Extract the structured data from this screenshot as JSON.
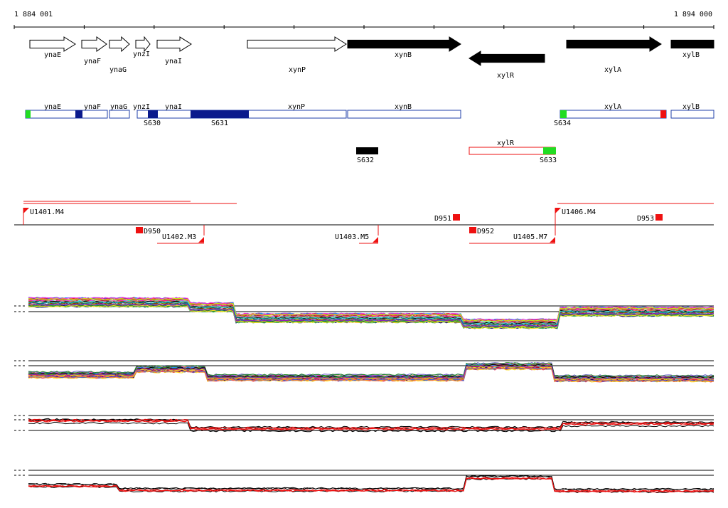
{
  "coordinates": {
    "start_label": "1 884 001",
    "end_label": "1 894 000"
  },
  "genes": [
    {
      "label": "ynaE",
      "strand": "+",
      "style": "outline"
    },
    {
      "label": "ynaF",
      "strand": "+",
      "style": "outline"
    },
    {
      "label": "ynaG",
      "strand": "+",
      "style": "outline"
    },
    {
      "label": "ynzI",
      "strand": "+",
      "style": "outline"
    },
    {
      "label": "ynaI",
      "strand": "+",
      "style": "outline"
    },
    {
      "label": "xynP",
      "strand": "+",
      "style": "outline"
    },
    {
      "label": "xynB",
      "strand": "+",
      "style": "filled"
    },
    {
      "label": "xylR",
      "strand": "-",
      "style": "filled"
    },
    {
      "label": "xylA",
      "strand": "+",
      "style": "filled"
    },
    {
      "label": "xylB",
      "strand": "+",
      "style": "filled"
    }
  ],
  "transcript_labels": [
    "ynaE",
    "ynaF",
    "ynaG",
    "ynzI",
    "ynaI",
    "xynP",
    "xynB",
    "xylA",
    "xylB",
    "xylR"
  ],
  "segment_labels": [
    "S630",
    "S631",
    "S632",
    "S633",
    "S634"
  ],
  "feature_labels": [
    "U1401.M4",
    "U1406.M4",
    "U1402.M3",
    "U1403.M5",
    "U1405.M7",
    "D950",
    "D951",
    "D952",
    "D953"
  ],
  "colors": {
    "filled": "#000000",
    "outline": "#ffffff",
    "transcript_border": "#1f3fa8",
    "segment_dark": "#0a1a8c",
    "green": "#22dd22",
    "red": "#ee1111"
  }
}
